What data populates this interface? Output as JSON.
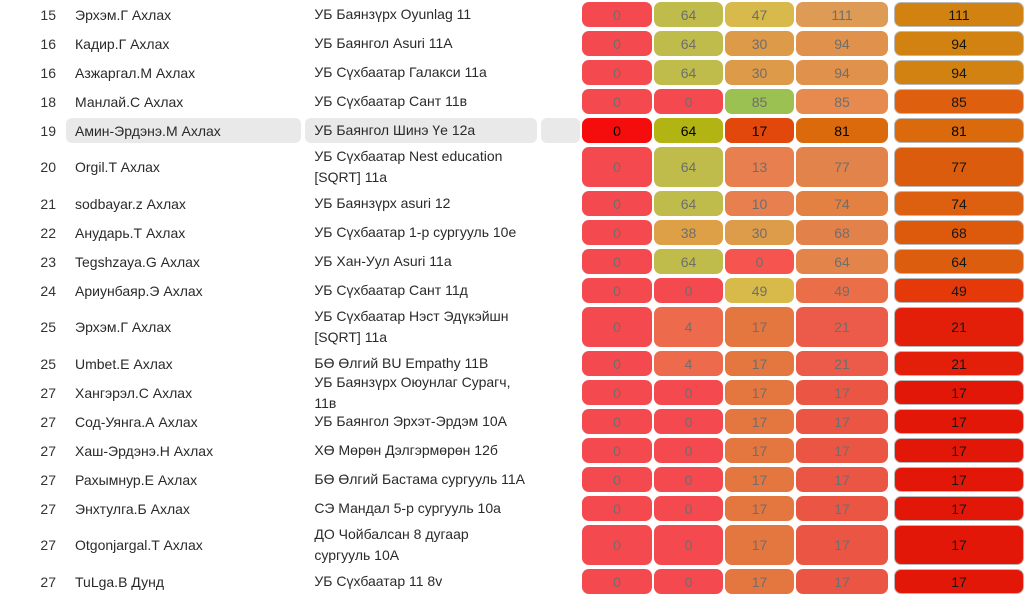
{
  "table": {
    "rows": [
      {
        "rank": "15",
        "name": "Эрхэм.Г Ахлах",
        "school": "УБ Баянзүрх Oyunlag 11",
        "highlighted": false,
        "tall": false,
        "scores": [
          {
            "v": "0",
            "bg": "#f4494e"
          },
          {
            "v": "64",
            "bg": "#bfbc4b"
          },
          {
            "v": "47",
            "bg": "#d8b94b"
          },
          {
            "v": "111",
            "bg": "#de9b55"
          },
          {
            "v": "111",
            "bg": "#d18210"
          }
        ]
      },
      {
        "rank": "16",
        "name": "Кадир.Г Ахлах",
        "school": "УБ Баянгол Asuri 11А",
        "highlighted": false,
        "tall": false,
        "scores": [
          {
            "v": "0",
            "bg": "#f4494e"
          },
          {
            "v": "64",
            "bg": "#bfbc4b"
          },
          {
            "v": "30",
            "bg": "#dd9a48"
          },
          {
            "v": "94",
            "bg": "#e0924c"
          },
          {
            "v": "94",
            "bg": "#d18210"
          }
        ]
      },
      {
        "rank": "16",
        "name": "Азжаргал.М Ахлах",
        "school": "УБ Сүхбаатар Галакси 11а",
        "highlighted": false,
        "tall": false,
        "scores": [
          {
            "v": "0",
            "bg": "#f4494e"
          },
          {
            "v": "64",
            "bg": "#bfbc4b"
          },
          {
            "v": "30",
            "bg": "#dd9a48"
          },
          {
            "v": "94",
            "bg": "#e0924c"
          },
          {
            "v": "94",
            "bg": "#d18210"
          }
        ]
      },
      {
        "rank": "18",
        "name": "Манлай.С Ахлах",
        "school": "УБ Сүхбаатар Сант 11в",
        "highlighted": false,
        "tall": false,
        "scores": [
          {
            "v": "0",
            "bg": "#f4494e"
          },
          {
            "v": "0",
            "bg": "#f4494e"
          },
          {
            "v": "85",
            "bg": "#9cc153"
          },
          {
            "v": "85",
            "bg": "#e68a50"
          },
          {
            "v": "85",
            "bg": "#de600f"
          }
        ]
      },
      {
        "rank": "19",
        "name": "Амин-Эрдэнэ.М Ахлах",
        "school": "УБ Баянгол Шинэ Үе 12а",
        "highlighted": true,
        "tall": false,
        "scores": [
          {
            "v": "0",
            "bg": "#f50d0d"
          },
          {
            "v": "64",
            "bg": "#b2b414"
          },
          {
            "v": "17",
            "bg": "#e2470c"
          },
          {
            "v": "81",
            "bg": "#db6a0c"
          },
          {
            "v": "81",
            "bg": "#db6a0c"
          }
        ]
      },
      {
        "rank": "20",
        "name": "Orgil.T Ахлах",
        "school": "УБ Сүхбаатар Nest education [SQRT] 11а",
        "highlighted": false,
        "tall": true,
        "scores": [
          {
            "v": "0",
            "bg": "#f4494e"
          },
          {
            "v": "64",
            "bg": "#bfbc4b"
          },
          {
            "v": "13",
            "bg": "#e87f4f"
          },
          {
            "v": "77",
            "bg": "#e3834c"
          },
          {
            "v": "77",
            "bg": "#da5c0c"
          }
        ]
      },
      {
        "rank": "21",
        "name": "sodbayar.z Ахлах",
        "school": "УБ Баянзүрх asuri 12",
        "highlighted": false,
        "tall": false,
        "scores": [
          {
            "v": "0",
            "bg": "#f4494e"
          },
          {
            "v": "64",
            "bg": "#bfbc4b"
          },
          {
            "v": "10",
            "bg": "#e87f4f"
          },
          {
            "v": "74",
            "bg": "#e28142"
          },
          {
            "v": "74",
            "bg": "#dd5f10"
          }
        ]
      },
      {
        "rank": "22",
        "name": "Анударь.Т Ахлах",
        "school": "УБ Сүхбаатар 1-р сургууль 10е",
        "highlighted": false,
        "tall": false,
        "scores": [
          {
            "v": "0",
            "bg": "#f4494e"
          },
          {
            "v": "38",
            "bg": "#dda047"
          },
          {
            "v": "30",
            "bg": "#dd9c49"
          },
          {
            "v": "68",
            "bg": "#e3814a"
          },
          {
            "v": "68",
            "bg": "#dd5a0d"
          }
        ]
      },
      {
        "rank": "23",
        "name": "Tegshzaya.G Ахлах",
        "school": "УБ Хан-Уул Asuri 11а",
        "highlighted": false,
        "tall": false,
        "scores": [
          {
            "v": "0",
            "bg": "#f4494e"
          },
          {
            "v": "64",
            "bg": "#bfbc4b"
          },
          {
            "v": "0",
            "bg": "#f5554e"
          },
          {
            "v": "64",
            "bg": "#e3854b"
          },
          {
            "v": "64",
            "bg": "#dd5d0e"
          }
        ]
      },
      {
        "rank": "24",
        "name": "Ариунбаяр.Э Ахлах",
        "school": "УБ Сүхбаатар Сант 11д",
        "highlighted": false,
        "tall": false,
        "scores": [
          {
            "v": "0",
            "bg": "#f4494e"
          },
          {
            "v": "0",
            "bg": "#f4494e"
          },
          {
            "v": "49",
            "bg": "#d7ba4a"
          },
          {
            "v": "49",
            "bg": "#ea6f48"
          },
          {
            "v": "49",
            "bg": "#e6390a"
          }
        ]
      },
      {
        "rank": "25",
        "name": "Эрхэм.Г Ахлах",
        "school": "УБ Сүхбаатар Нэст Эдүкэйшн [SQRT] 11а",
        "highlighted": false,
        "tall": true,
        "scores": [
          {
            "v": "0",
            "bg": "#f4494e"
          },
          {
            "v": "4",
            "bg": "#ee6a4c"
          },
          {
            "v": "17",
            "bg": "#e3773f"
          },
          {
            "v": "21",
            "bg": "#ec5a49"
          },
          {
            "v": "21",
            "bg": "#e41f09"
          }
        ]
      },
      {
        "rank": "25",
        "name": "Umbet.E Ахлах",
        "school": "БӨ Өлгий BU Empathy 11В",
        "highlighted": false,
        "tall": false,
        "scores": [
          {
            "v": "0",
            "bg": "#f4494e"
          },
          {
            "v": "4",
            "bg": "#ee6a4c"
          },
          {
            "v": "17",
            "bg": "#e3773f"
          },
          {
            "v": "21",
            "bg": "#ec5a49"
          },
          {
            "v": "21",
            "bg": "#e41f09"
          }
        ]
      },
      {
        "rank": "27",
        "name": "Хангэрэл.С Ахлах",
        "school": "УБ Баянзүрх Оюунлаг Сурагч, 11в",
        "highlighted": false,
        "tall": false,
        "scores": [
          {
            "v": "0",
            "bg": "#f4494e"
          },
          {
            "v": "0",
            "bg": "#f4494e"
          },
          {
            "v": "17",
            "bg": "#e3773f"
          },
          {
            "v": "17",
            "bg": "#ea5544"
          },
          {
            "v": "17",
            "bg": "#e21708"
          }
        ]
      },
      {
        "rank": "27",
        "name": "Сод-Уянга.А Ахлах",
        "school": "УБ Баянгол Эрхэт-Эрдэм 10А",
        "highlighted": false,
        "tall": false,
        "scores": [
          {
            "v": "0",
            "bg": "#f4494e"
          },
          {
            "v": "0",
            "bg": "#f4494e"
          },
          {
            "v": "17",
            "bg": "#e3773f"
          },
          {
            "v": "17",
            "bg": "#ea5544"
          },
          {
            "v": "17",
            "bg": "#e21708"
          }
        ]
      },
      {
        "rank": "27",
        "name": "Хаш-Эрдэнэ.Н Ахлах",
        "school": "ХӨ Мөрөн Дэлгэрмөрөн 12б",
        "highlighted": false,
        "tall": false,
        "scores": [
          {
            "v": "0",
            "bg": "#f4494e"
          },
          {
            "v": "0",
            "bg": "#f4494e"
          },
          {
            "v": "17",
            "bg": "#e3773f"
          },
          {
            "v": "17",
            "bg": "#ea5544"
          },
          {
            "v": "17",
            "bg": "#e21708"
          }
        ]
      },
      {
        "rank": "27",
        "name": "Рахымнур.Е Ахлах",
        "school": "БӨ Өлгий Бастама сургууль 11А",
        "highlighted": false,
        "tall": false,
        "scores": [
          {
            "v": "0",
            "bg": "#f4494e"
          },
          {
            "v": "0",
            "bg": "#f4494e"
          },
          {
            "v": "17",
            "bg": "#e3773f"
          },
          {
            "v": "17",
            "bg": "#ea5544"
          },
          {
            "v": "17",
            "bg": "#e21708"
          }
        ]
      },
      {
        "rank": "27",
        "name": "Энхтулга.Б Ахлах",
        "school": "СЭ Мандал 5-р сургууль 10а",
        "highlighted": false,
        "tall": false,
        "scores": [
          {
            "v": "0",
            "bg": "#f4494e"
          },
          {
            "v": "0",
            "bg": "#f4494e"
          },
          {
            "v": "17",
            "bg": "#e3773f"
          },
          {
            "v": "17",
            "bg": "#ea5544"
          },
          {
            "v": "17",
            "bg": "#e21708"
          }
        ]
      },
      {
        "rank": "27",
        "name": "Otgonjargal.T Ахлах",
        "school": "ДО Чойбалсан 8 дугаар сургууль 10А",
        "highlighted": false,
        "tall": true,
        "scores": [
          {
            "v": "0",
            "bg": "#f4494e"
          },
          {
            "v": "0",
            "bg": "#f4494e"
          },
          {
            "v": "17",
            "bg": "#e3773f"
          },
          {
            "v": "17",
            "bg": "#ea5544"
          },
          {
            "v": "17",
            "bg": "#e21708"
          }
        ]
      },
      {
        "rank": "27",
        "name": "TuLga.B Дунд",
        "school": "УБ Сүхбаатар 11 8v",
        "highlighted": false,
        "tall": false,
        "scores": [
          {
            "v": "0",
            "bg": "#f4494e"
          },
          {
            "v": "0",
            "bg": "#f4494e"
          },
          {
            "v": "17",
            "bg": "#e3773f"
          },
          {
            "v": "17",
            "bg": "#ea5544"
          },
          {
            "v": "17",
            "bg": "#e21708"
          }
        ]
      }
    ],
    "colors": {
      "row_highlight": "#e9e9e9",
      "score_text": "#6e6e6e",
      "total_text": "#161616",
      "total_border": "#b9b9b9"
    }
  }
}
